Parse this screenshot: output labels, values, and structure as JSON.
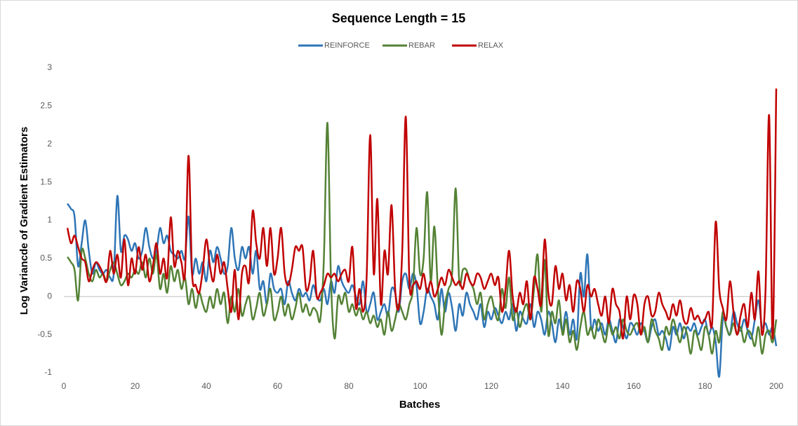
{
  "chart_data": {
    "type": "line",
    "title": "Sequence Length = 15",
    "xlabel": "Batches",
    "ylabel": "Log Variancde of Gradient Estimators",
    "x": [
      1,
      2,
      3,
      4,
      5,
      6,
      7,
      8,
      9,
      10,
      11,
      12,
      13,
      14,
      15,
      16,
      17,
      18,
      19,
      20,
      21,
      22,
      23,
      24,
      25,
      26,
      27,
      28,
      29,
      30,
      31,
      32,
      33,
      34,
      35,
      36,
      37,
      38,
      39,
      40,
      41,
      42,
      43,
      44,
      45,
      46,
      47,
      48,
      49,
      50,
      51,
      52,
      53,
      54,
      55,
      56,
      57,
      58,
      59,
      60,
      61,
      62,
      63,
      64,
      65,
      66,
      67,
      68,
      69,
      70,
      71,
      72,
      73,
      74,
      75,
      76,
      77,
      78,
      79,
      80,
      81,
      82,
      83,
      84,
      85,
      86,
      87,
      88,
      89,
      90,
      91,
      92,
      93,
      94,
      95,
      96,
      97,
      98,
      99,
      100,
      101,
      102,
      103,
      104,
      105,
      106,
      107,
      108,
      109,
      110,
      111,
      112,
      113,
      114,
      115,
      116,
      117,
      118,
      119,
      120,
      121,
      122,
      123,
      124,
      125,
      126,
      127,
      128,
      129,
      130,
      131,
      132,
      133,
      134,
      135,
      136,
      137,
      138,
      139,
      140,
      141,
      142,
      143,
      144,
      145,
      146,
      147,
      148,
      149,
      150,
      151,
      152,
      153,
      154,
      155,
      156,
      157,
      158,
      159,
      160,
      161,
      162,
      163,
      164,
      165,
      166,
      167,
      168,
      169,
      170,
      171,
      172,
      173,
      174,
      175,
      176,
      177,
      178,
      179,
      180,
      181,
      182,
      183,
      184,
      185,
      186,
      187,
      188,
      189,
      190,
      191,
      192,
      193,
      194,
      195,
      196,
      197,
      198,
      199,
      200
    ],
    "series": [
      {
        "name": "REINFORCE",
        "color": "#2e75b6",
        "values": [
          1.22,
          1.15,
          1.05,
          0.4,
          0.7,
          1.0,
          0.6,
          0.3,
          0.45,
          0.35,
          0.3,
          0.35,
          0.25,
          0.3,
          1.32,
          0.6,
          0.8,
          0.75,
          0.6,
          0.7,
          0.5,
          0.6,
          0.9,
          0.65,
          0.5,
          0.6,
          0.9,
          0.7,
          0.8,
          0.6,
          0.55,
          0.5,
          0.6,
          0.5,
          1.05,
          0.3,
          0.5,
          0.3,
          0.45,
          0.2,
          0.6,
          0.45,
          0.65,
          0.5,
          0.3,
          0.4,
          0.9,
          0.5,
          0.35,
          0.65,
          0.5,
          0.65,
          0.3,
          0.6,
          0.1,
          0.2,
          -0.1,
          0.3,
          0.1,
          0.05,
          0.1,
          -0.1,
          0.2,
          0.05,
          -0.05,
          0.1,
          0,
          0.05,
          -0.05,
          0.15,
          0,
          -0.05,
          0.1,
          -0.1,
          0.2,
          0.05,
          0.4,
          0.2,
          0.1,
          0.05,
          0.15,
          0,
          -0.1,
          0.2,
          -0.2,
          -0.1,
          0.05,
          -0.3,
          -0.2,
          -0.1,
          -0.25,
          0.1,
          0.05,
          -0.2,
          0.2,
          0.3,
          0.1,
          0.3,
          0.15,
          -0.35,
          -0.2,
          0.1,
          0,
          -0.1,
          -0.3,
          0.1,
          -0.2,
          0.05,
          -0.15,
          -0.45,
          -0.1,
          -0.25,
          0.05,
          -0.1,
          -0.2,
          -0.3,
          -0.1,
          -0.4,
          -0.2,
          -0.3,
          -0.15,
          -0.25,
          -0.35,
          -0.2,
          -0.3,
          -0.1,
          -0.45,
          -0.2,
          -0.3,
          -0.35,
          -0.1,
          -0.4,
          -0.2,
          -0.3,
          -0.5,
          -0.2,
          -0.35,
          -0.6,
          -0.3,
          -0.45,
          -0.2,
          -0.5,
          -0.3,
          -0.55,
          0.3,
          0,
          0.55,
          -0.4,
          -0.3,
          -0.45,
          -0.35,
          -0.5,
          -0.3,
          -0.45,
          -0.6,
          -0.3,
          -0.4,
          -0.55,
          -0.35,
          -0.4,
          -0.5,
          -0.35,
          -0.45,
          -0.6,
          -0.4,
          -0.3,
          -0.5,
          -0.45,
          -0.55,
          -0.7,
          -0.4,
          -0.5,
          -0.35,
          -0.55,
          -0.4,
          -0.45,
          -0.35,
          -0.5,
          -0.4,
          -0.3,
          -0.5,
          -0.4,
          -0.6,
          -1.05,
          -0.3,
          -0.4,
          -0.5,
          -0.2,
          -0.35,
          -0.45,
          -0.3,
          -0.45,
          -0.55,
          -0.3,
          -0.05,
          -0.4,
          -0.35,
          -0.5,
          -0.4,
          -0.65
        ]
      },
      {
        "name": "REBAR",
        "color": "#548235",
        "values": [
          0.52,
          0.45,
          0.35,
          -0.05,
          0.6,
          0.5,
          0.3,
          0.2,
          0.35,
          0.25,
          0.3,
          0.2,
          0.35,
          0.45,
          0.3,
          0.15,
          0.2,
          0.3,
          0.25,
          0.35,
          0.3,
          0.45,
          0.25,
          0.5,
          0.3,
          0.55,
          0.1,
          0.3,
          0.05,
          0.4,
          0.2,
          0.35,
          0.1,
          0.25,
          -0.1,
          0.1,
          -0.15,
          0.05,
          -0.1,
          -0.2,
          0,
          -0.15,
          0.1,
          -0.1,
          0.05,
          -0.35,
          0,
          -0.2,
          0.1,
          -0.25,
          -0.1,
          0,
          -0.3,
          -0.15,
          0.05,
          -0.25,
          -0.1,
          0.1,
          -0.3,
          -0.2,
          0,
          -0.25,
          -0.1,
          -0.3,
          -0.15,
          0.05,
          -0.2,
          -0.1,
          -0.25,
          -0.15,
          -0.2,
          -0.3,
          0.5,
          2.28,
          0.2,
          -0.55,
          0,
          -0.1,
          0.05,
          -0.2,
          -0.1,
          -0.25,
          -0.15,
          -0.3,
          -0.2,
          -0.35,
          -0.25,
          -0.4,
          -0.3,
          -0.5,
          -0.2,
          -0.45,
          -0.3,
          -0.1,
          -0.2,
          -0.3,
          -0.1,
          0.1,
          0.9,
          0.3,
          0.5,
          1.37,
          0.2,
          0.92,
          0.1,
          -0.5,
          -0.1,
          0.1,
          0.3,
          1.42,
          0.2,
          0.35,
          0.35,
          0.2,
          0.1,
          -0.1,
          0.05,
          -0.3,
          -0.1,
          0,
          -0.2,
          -0.3,
          0.1,
          -0.15,
          0.25,
          -0.3,
          -0.15,
          -0.4,
          -0.2,
          -0.1,
          -0.3,
          0.1,
          0.55,
          -0.2,
          0.48,
          -0.5,
          -0.2,
          -0.35,
          -0.05,
          -0.5,
          -0.3,
          -0.6,
          -0.45,
          -0.7,
          -0.4,
          -0.2,
          -0.5,
          -0.4,
          -0.55,
          -0.3,
          -0.45,
          -0.6,
          -0.35,
          -0.5,
          -0.4,
          -0.55,
          -0.3,
          -0.45,
          -0.5,
          -0.4,
          -0.35,
          -0.5,
          -0.4,
          -0.6,
          -0.3,
          -0.45,
          -0.55,
          -0.7,
          -0.4,
          -0.5,
          -0.3,
          -0.45,
          -0.6,
          -0.4,
          -0.5,
          -0.75,
          -0.45,
          -0.55,
          -0.7,
          -0.4,
          -0.5,
          -0.75,
          -0.45,
          -0.6,
          -0.2,
          -0.4,
          -0.5,
          -0.35,
          -0.5,
          -0.4,
          -0.6,
          -0.45,
          -0.5,
          -0.65,
          -0.4,
          -0.75,
          -0.5,
          -0.45,
          -0.6,
          -0.3
        ]
      },
      {
        "name": "RELAX",
        "color": "#c00000",
        "values": [
          0.9,
          0.7,
          0.8,
          0.65,
          0.5,
          0.45,
          0.2,
          0.35,
          0.45,
          0.4,
          0.3,
          0.2,
          0.6,
          0.3,
          0.55,
          0.25,
          0.75,
          0.15,
          0.5,
          0.3,
          0.65,
          0.35,
          0.55,
          0.2,
          0.4,
          0.7,
          0.3,
          0.5,
          0.25,
          1.04,
          0.4,
          0.6,
          0.45,
          0.3,
          1.85,
          0.3,
          0.15,
          0.05,
          0.35,
          0.75,
          0.4,
          0.2,
          0.55,
          0.3,
          0.45,
          0.1,
          -0.2,
          0.35,
          -0.3,
          0.3,
          0.4,
          0.2,
          1.12,
          0.7,
          0.5,
          0.9,
          0.4,
          0.9,
          0.3,
          0.5,
          0.9,
          0.3,
          0.15,
          0.35,
          0.65,
          0.6,
          0.65,
          0.1,
          0.2,
          0.6,
          0,
          0.05,
          0.15,
          0.3,
          0.25,
          0.3,
          0.2,
          0.3,
          0.35,
          0.2,
          0.65,
          -0.15,
          0.1,
          -0.2,
          0.25,
          2.12,
          0.3,
          1.28,
          -0.1,
          0.6,
          0.3,
          1.2,
          0.1,
          -0.15,
          0.6,
          2.36,
          0.2,
          0.15,
          0.2,
          0.1,
          0.3,
          0.05,
          0.2,
          0,
          0.1,
          0.25,
          0.15,
          0.35,
          0.25,
          0.15,
          0.2,
          0.1,
          0.3,
          0.2,
          0.15,
          0.3,
          0.25,
          0.1,
          0.2,
          0.3,
          0.15,
          0.25,
          -0.2,
          0.1,
          0.6,
          0,
          -0.2,
          0.05,
          -0.1,
          0.2,
          -0.3,
          0.25,
          0.1,
          -0.1,
          0.75,
          0.05,
          -0.1,
          0.4,
          0.1,
          0.3,
          -0.05,
          0.15,
          -0.2,
          0.2,
          0.1,
          -0.2,
          0.15,
          0,
          0.1,
          -0.1,
          -0.25,
          0,
          -0.35,
          0.1,
          -0.1,
          -0.2,
          -0.55,
          0,
          -0.3,
          0.02,
          -0.1,
          -0.5,
          -0.1,
          0,
          -0.25,
          -0.2,
          0.05,
          -0.1,
          -0.2,
          -0.3,
          -0.1,
          -0.25,
          -0.05,
          -0.3,
          -0.35,
          -0.15,
          -0.3,
          -0.25,
          -0.35,
          -0.3,
          -0.2,
          -0.35,
          0.98,
          0.1,
          -0.15,
          -0.3,
          0.2,
          -0.2,
          -0.5,
          -0.25,
          -0.1,
          -0.4,
          0.05,
          -0.3,
          0.33,
          -0.5,
          0.1,
          2.38,
          -0.55,
          2.73
        ]
      }
    ],
    "xlim": [
      0,
      200
    ],
    "xticks": [
      0,
      20,
      40,
      60,
      80,
      100,
      120,
      140,
      160,
      180,
      200
    ],
    "ylim": [
      -1,
      3
    ],
    "yticks": [
      -1,
      -0.5,
      0,
      0.5,
      1,
      1.5,
      2,
      2.5,
      3
    ],
    "grid": false,
    "legend": "top"
  }
}
